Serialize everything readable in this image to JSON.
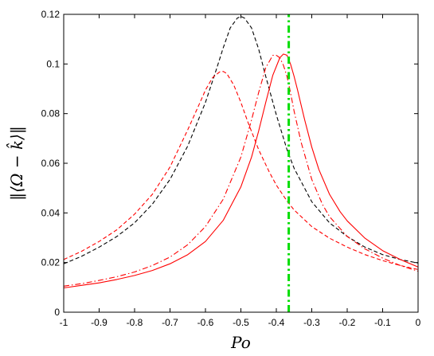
{
  "chart_data": {
    "type": "line",
    "xlabel": "Po",
    "ylabel": "‖⟨Ω − k̂⟩‖",
    "xlim": [
      -1,
      0
    ],
    "ylim": [
      0,
      0.12
    ],
    "xticks": [
      -1,
      -0.9,
      -0.8,
      -0.7,
      -0.6,
      -0.5,
      -0.4,
      -0.3,
      -0.2,
      -0.1,
      0
    ],
    "xtick_labels": [
      "-1",
      "-0.9",
      "-0.8",
      "-0.7",
      "-0.6",
      "-0.5",
      "-0.4",
      "-0.3",
      "-0.2",
      "-0.1",
      "0"
    ],
    "yticks": [
      0,
      0.02,
      0.04,
      0.06,
      0.08,
      0.1,
      0.12
    ],
    "ytick_labels": [
      "0",
      "0.02",
      "0.04",
      "0.06",
      "0.08",
      "0.1",
      "0.12"
    ],
    "grid": false,
    "legend": "none",
    "series": [
      {
        "color": "#000000",
        "style": "dashed",
        "x": [
          -1,
          -0.95,
          -0.9,
          -0.85,
          -0.8,
          -0.75,
          -0.7,
          -0.65,
          -0.6,
          -0.57,
          -0.55,
          -0.53,
          -0.51,
          -0.5,
          -0.49,
          -0.47,
          -0.45,
          -0.43,
          -0.4,
          -0.37,
          -0.35,
          -0.3,
          -0.25,
          -0.2,
          -0.15,
          -0.1,
          -0.05,
          0
        ],
        "y": [
          0.0195,
          0.0225,
          0.0262,
          0.0305,
          0.036,
          0.0435,
          0.0535,
          0.067,
          0.0845,
          0.0975,
          0.1065,
          0.1145,
          0.1185,
          0.1192,
          0.1185,
          0.1145,
          0.106,
          0.095,
          0.0795,
          0.0655,
          0.058,
          0.0445,
          0.036,
          0.0305,
          0.0262,
          0.0232,
          0.0212,
          0.0198
        ]
      },
      {
        "color": "#ff0000",
        "style": "dashed",
        "x": [
          -1,
          -0.95,
          -0.9,
          -0.85,
          -0.8,
          -0.75,
          -0.7,
          -0.65,
          -0.62,
          -0.6,
          -0.58,
          -0.56,
          -0.55,
          -0.54,
          -0.52,
          -0.5,
          -0.48,
          -0.45,
          -0.42,
          -0.4,
          -0.37,
          -0.35,
          -0.3,
          -0.25,
          -0.2,
          -0.15,
          -0.1,
          -0.05,
          0
        ],
        "y": [
          0.0212,
          0.0245,
          0.0285,
          0.0332,
          0.0395,
          0.0475,
          0.0585,
          0.0735,
          0.083,
          0.0895,
          0.0945,
          0.0968,
          0.097,
          0.0962,
          0.0915,
          0.0845,
          0.0765,
          0.0655,
          0.0565,
          0.0512,
          0.0448,
          0.0412,
          0.0345,
          0.0298,
          0.0262,
          0.0232,
          0.0208,
          0.0188,
          0.0172
        ]
      },
      {
        "color": "#ff0000",
        "style": "dashdot",
        "x": [
          -1,
          -0.95,
          -0.9,
          -0.85,
          -0.8,
          -0.75,
          -0.7,
          -0.65,
          -0.6,
          -0.55,
          -0.5,
          -0.47,
          -0.45,
          -0.43,
          -0.41,
          -0.4,
          -0.39,
          -0.38,
          -0.37,
          -0.36,
          -0.35,
          -0.33,
          -0.3,
          -0.27,
          -0.25,
          -0.2,
          -0.15,
          -0.1,
          -0.05,
          0
        ],
        "y": [
          0.0105,
          0.0115,
          0.0128,
          0.0143,
          0.0162,
          0.0188,
          0.0222,
          0.0272,
          0.0345,
          0.0455,
          0.0625,
          0.0775,
          0.0885,
          0.0985,
          0.1035,
          0.1035,
          0.1025,
          0.0995,
          0.095,
          0.0885,
          0.081,
          0.0685,
          0.0535,
          0.0435,
          0.0385,
          0.0305,
          0.0255,
          0.0218,
          0.0188,
          0.0165
        ]
      },
      {
        "color": "#ff0000",
        "style": "solid",
        "x": [
          -1,
          -0.95,
          -0.9,
          -0.85,
          -0.8,
          -0.75,
          -0.7,
          -0.65,
          -0.6,
          -0.55,
          -0.5,
          -0.47,
          -0.45,
          -0.43,
          -0.41,
          -0.39,
          -0.38,
          -0.37,
          -0.36,
          -0.35,
          -0.34,
          -0.33,
          -0.32,
          -0.3,
          -0.28,
          -0.25,
          -0.22,
          -0.2,
          -0.15,
          -0.1,
          -0.05,
          0
        ],
        "y": [
          0.0098,
          0.0108,
          0.0118,
          0.0132,
          0.0148,
          0.0168,
          0.0195,
          0.0232,
          0.0285,
          0.037,
          0.0505,
          0.0625,
          0.073,
          0.0845,
          0.0955,
          0.1025,
          0.104,
          0.1035,
          0.1,
          0.095,
          0.0895,
          0.0835,
          0.0775,
          0.0665,
          0.0575,
          0.0475,
          0.0405,
          0.0368,
          0.0298,
          0.0248,
          0.0212,
          0.0182
        ]
      },
      {
        "color": "#00dd00",
        "style": "dashdot-thick",
        "x": [
          -0.365,
          -0.365
        ],
        "y": [
          0,
          0.12
        ]
      }
    ]
  }
}
